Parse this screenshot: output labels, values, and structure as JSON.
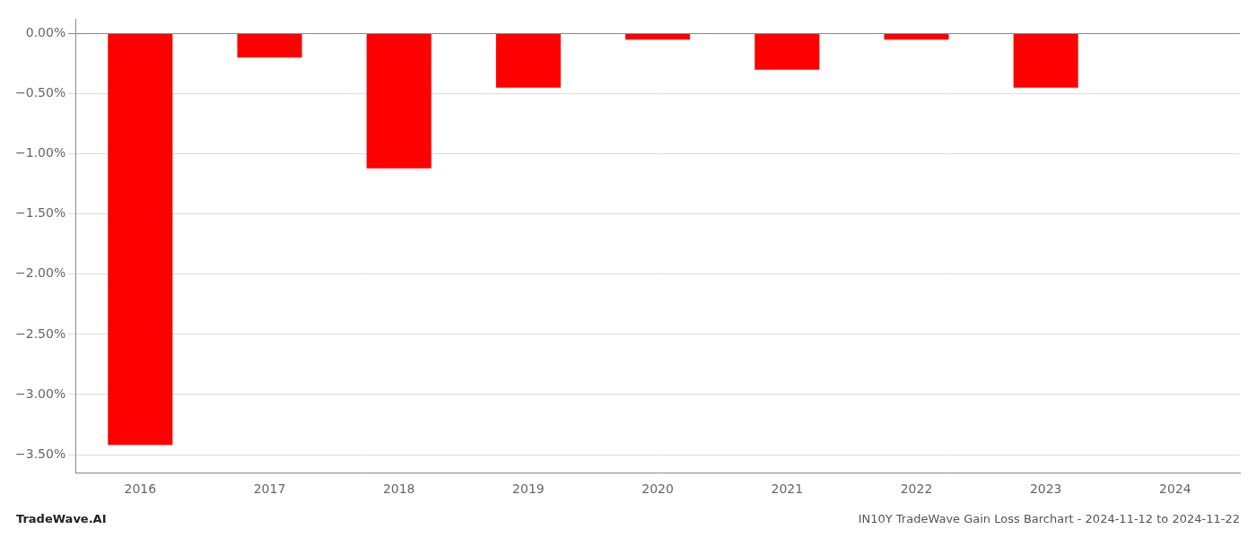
{
  "chart_data": {
    "type": "bar",
    "categories": [
      "2016",
      "2017",
      "2018",
      "2019",
      "2020",
      "2021",
      "2022",
      "2023",
      "2024"
    ],
    "values": [
      -3.42,
      -0.2,
      -1.12,
      -0.45,
      -0.05,
      -0.3,
      -0.05,
      -0.45,
      0.0
    ],
    "color": "#ff0000",
    "ylim": [
      -3.65,
      0.12
    ],
    "yticks": [
      {
        "value": 0.0,
        "label": "0.00%"
      },
      {
        "value": -0.5,
        "label": "−0.50%"
      },
      {
        "value": -1.0,
        "label": "−1.00%"
      },
      {
        "value": -1.5,
        "label": "−1.50%"
      },
      {
        "value": -2.0,
        "label": "−2.00%"
      },
      {
        "value": -2.5,
        "label": "−2.50%"
      },
      {
        "value": -3.0,
        "label": "−3.00%"
      },
      {
        "value": -3.5,
        "label": "−3.50%"
      }
    ],
    "grid": true,
    "annotations": [
      "TradeWave.AI",
      "IN10Y TradeWave Gain Loss Barchart - 2024-11-12 to 2024-11-22"
    ]
  }
}
